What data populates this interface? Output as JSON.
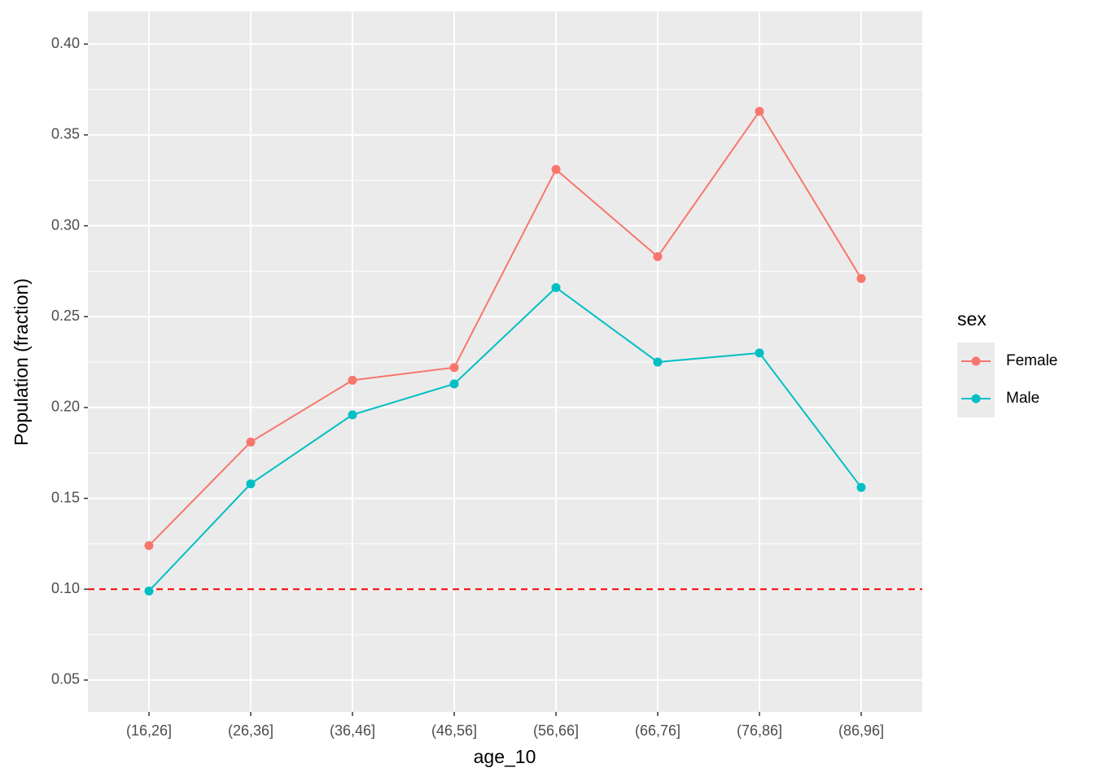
{
  "chart_data": {
    "type": "line",
    "x_label": "age_10",
    "y_label": "Population (fraction)",
    "categories": [
      "(16,26]",
      "(26,36]",
      "(36,46]",
      "(46,56]",
      "(56,66]",
      "(66,76]",
      "(76,86]",
      "(86,96]"
    ],
    "series": [
      {
        "name": "Female",
        "color": "#F8766D",
        "values": [
          0.124,
          0.181,
          0.215,
          0.222,
          0.331,
          0.283,
          0.363,
          0.271
        ]
      },
      {
        "name": "Male",
        "color": "#00BFC4",
        "values": [
          0.099,
          0.158,
          0.196,
          0.213,
          0.266,
          0.225,
          0.23,
          0.156
        ]
      }
    ],
    "ylim": [
      0.0325,
      0.418
    ],
    "yticks": [
      0.05,
      {
        "value": 0.1,
        "label": "0.10"
      },
      0.15,
      {
        "value": 0.2,
        "label": "0.20"
      },
      0.25,
      {
        "value": 0.3,
        "label": "0.30"
      },
      0.35,
      {
        "value": 0.4,
        "label": "0.40"
      }
    ],
    "hline": 0.1,
    "hline_color": "#ff0000",
    "legend_title": "sex",
    "grid": true
  }
}
